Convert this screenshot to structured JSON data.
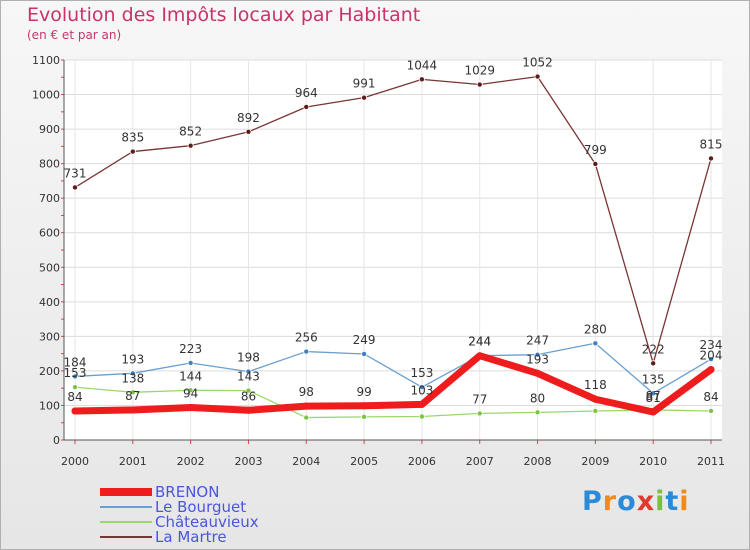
{
  "title": "Evolution des Impôts locaux par Habitant",
  "subtitle": "(en € et par an)",
  "logo": {
    "text": "Proxiti",
    "colors": [
      "#2b8bd6",
      "#f08a1c",
      "#2b8bd6",
      "#e03a2e",
      "#7ac043",
      "#2b8bd6",
      "#f08a1c"
    ]
  },
  "chart_data": {
    "type": "line",
    "x": [
      "2000",
      "2001",
      "2002",
      "2003",
      "2004",
      "2005",
      "2006",
      "2007",
      "2008",
      "2009",
      "2010",
      "2011"
    ],
    "ylim": [
      0,
      1100
    ],
    "yticks": [
      0,
      100,
      200,
      300,
      400,
      500,
      600,
      700,
      800,
      900,
      1000,
      1100
    ],
    "xlabel": "",
    "ylabel": "",
    "grid": true,
    "legend_position": "bottom-left",
    "series": [
      {
        "name": "BRENON",
        "color": "#ee1c1c",
        "width": 7,
        "marker": 3.5,
        "values": [
          84,
          87,
          94,
          86,
          98,
          99,
          103,
          244,
          193,
          118,
          81,
          204
        ],
        "labels": [
          "84",
          "87",
          "94",
          "86",
          "98",
          "99",
          "103",
          "244",
          "193",
          "118",
          "81",
          "204"
        ]
      },
      {
        "name": "Le Bourguet",
        "color": "#6a9fd0",
        "width": 1.3,
        "marker": 2.6,
        "markerFill": "#3f7fc2",
        "values": [
          184,
          193,
          223,
          198,
          256,
          249,
          153,
          244,
          247,
          280,
          135,
          234
        ],
        "labels": [
          "184",
          "193",
          "223",
          "198",
          "256",
          "249",
          "153",
          "244",
          "247",
          "280",
          "135",
          "234"
        ]
      },
      {
        "name": "Châteauvieux",
        "color": "#98d86a",
        "width": 1.3,
        "marker": 2.6,
        "markerFill": "#7cc444",
        "values": [
          153,
          138,
          144,
          143,
          65,
          67,
          68,
          77,
          80,
          84,
          87,
          84
        ],
        "labels": [
          "153",
          "138",
          "144",
          "143",
          "",
          "",
          "",
          "77",
          "80",
          "",
          "87",
          "84"
        ]
      },
      {
        "name": "La Martre",
        "color": "#7a3535",
        "width": 1.3,
        "marker": 2.6,
        "markerFill": "#5e1c1c",
        "values": [
          731,
          835,
          852,
          892,
          964,
          991,
          1044,
          1029,
          1052,
          799,
          222,
          815
        ],
        "labels": [
          "731",
          "835",
          "852",
          "892",
          "964",
          "991",
          "1044",
          "1029",
          "1052",
          "799",
          "222",
          "815"
        ]
      }
    ]
  }
}
